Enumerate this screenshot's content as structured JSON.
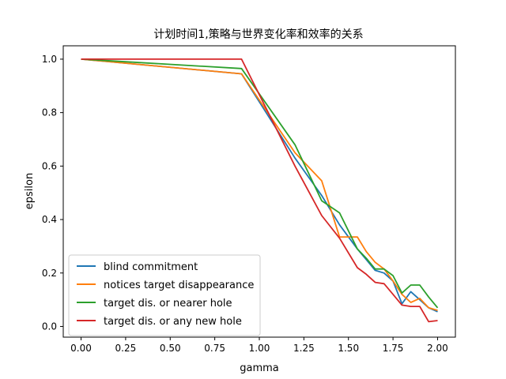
{
  "chart_data": {
    "type": "line",
    "title": "计划时间1,策略与世界变化率和效率的关系",
    "xlabel": "gamma",
    "ylabel": "epsilon",
    "xlim": [
      -0.1,
      2.1
    ],
    "ylim": [
      -0.04,
      1.05
    ],
    "xticks": [
      "0.00",
      "0.25",
      "0.50",
      "0.75",
      "1.00",
      "1.25",
      "1.50",
      "1.75",
      "2.00"
    ],
    "yticks": [
      "0.0",
      "0.2",
      "0.4",
      "0.6",
      "0.8",
      "1.0"
    ],
    "grid": false,
    "legend": "lower-left",
    "x": [
      0.0,
      0.9,
      1.2,
      1.35,
      1.45,
      1.55,
      1.6,
      1.65,
      1.7,
      1.75,
      1.8,
      1.85,
      1.9,
      1.95,
      2.0
    ],
    "series": [
      {
        "name": "blind commitment",
        "color": "#1f77b4",
        "values": [
          1.0,
          0.945,
          0.63,
          0.49,
          0.38,
          0.29,
          0.25,
          0.21,
          0.2,
          0.17,
          0.085,
          0.13,
          0.1,
          0.07,
          0.055
        ]
      },
      {
        "name": "notices target disappearance",
        "color": "#ff7f0e",
        "values": [
          1.0,
          0.945,
          0.65,
          0.545,
          0.335,
          0.335,
          0.28,
          0.24,
          0.215,
          0.17,
          0.12,
          0.09,
          0.105,
          0.07,
          0.06
        ]
      },
      {
        "name": "target dis. or nearer hole",
        "color": "#2ca02c",
        "values": [
          1.0,
          0.965,
          0.68,
          0.47,
          0.425,
          0.29,
          0.255,
          0.215,
          0.215,
          0.19,
          0.125,
          0.155,
          0.155,
          0.11,
          0.07
        ]
      },
      {
        "name": "target dis. or any new hole",
        "color": "#d62728",
        "values": [
          1.0,
          1.0,
          0.6,
          0.415,
          0.33,
          0.22,
          0.195,
          0.165,
          0.16,
          0.12,
          0.08,
          0.075,
          0.075,
          0.018,
          0.022
        ]
      }
    ]
  }
}
